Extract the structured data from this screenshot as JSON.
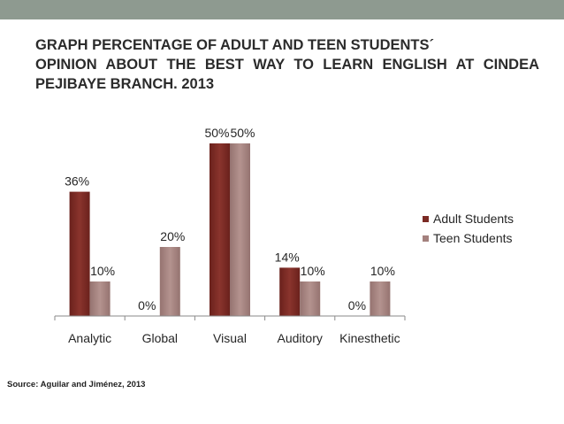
{
  "title": "GRAPH PERCENTAGE OF ADULT AND TEEN STUDENTS´\nOPINION ABOUT THE BEST WAY TO LEARN ENGLISH AT CINDEA PEJIBAYE BRANCH. 2013",
  "source": "Source: Aguilar and Jiménez, 2013",
  "colors": {
    "adult": "#7b2a24",
    "teen": "#a4817e",
    "top_band": "#8e9a90",
    "axis": "#888888",
    "label_text": "#262626"
  },
  "chart_data": {
    "type": "bar",
    "categories": [
      "Analytic",
      "Global",
      "Visual",
      "Auditory",
      "Kinesthetic"
    ],
    "series": [
      {
        "name": "Adult Students",
        "values": [
          36,
          0,
          50,
          14,
          0
        ],
        "labels": [
          "36%",
          "0%",
          "50%",
          "14%",
          "0%"
        ]
      },
      {
        "name": "Teen Students",
        "values": [
          10,
          20,
          50,
          10,
          10
        ],
        "labels": [
          "10%",
          "20%",
          "50%",
          "10%",
          "10%"
        ]
      }
    ],
    "ylim": [
      0,
      50
    ],
    "grid": false,
    "legend": "right"
  }
}
